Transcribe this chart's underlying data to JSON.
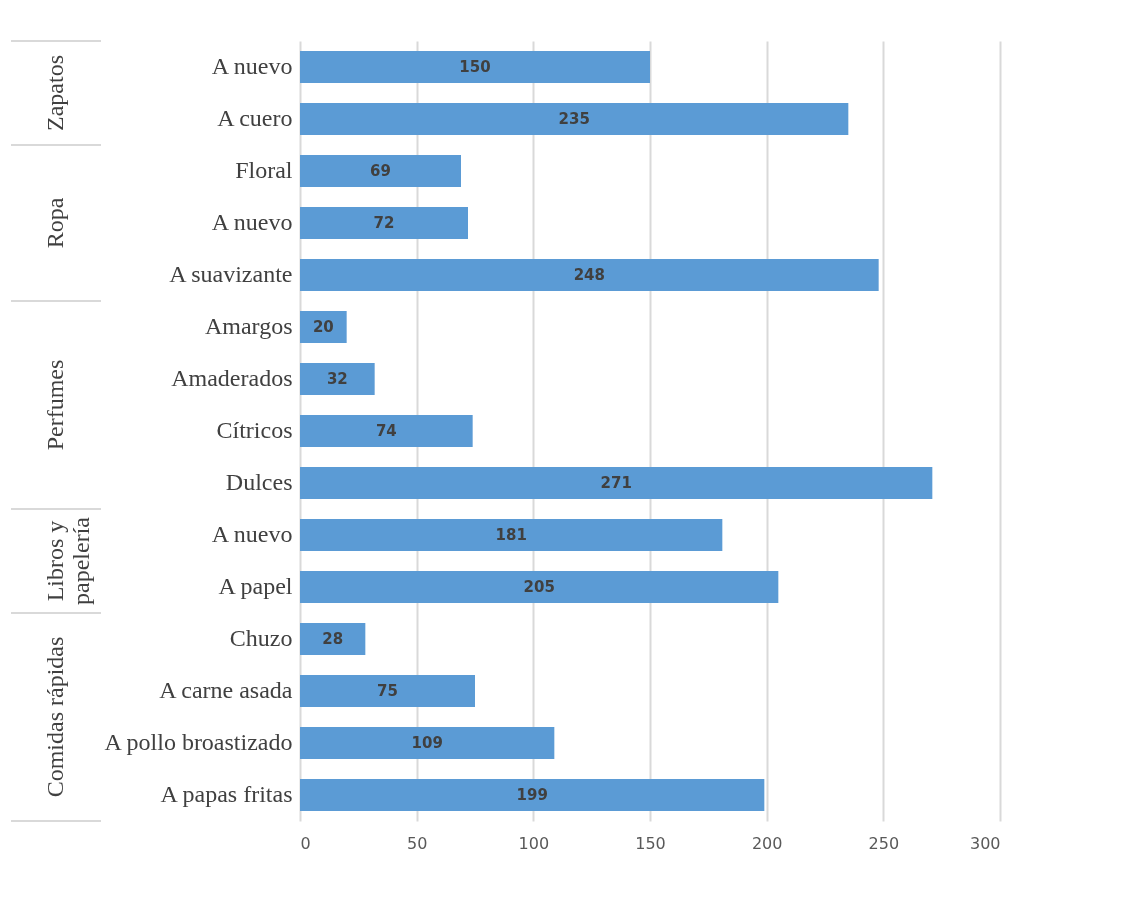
{
  "chart_data": {
    "type": "bar",
    "orientation": "horizontal",
    "categories": [
      "A nuevo",
      "A cuero",
      "Floral",
      "A nuevo",
      "A suavizante",
      "Amargos",
      "Amaderados",
      "Cítricos",
      "Dulces",
      "A nuevo",
      "A papel",
      "Chuzo",
      "A carne asada",
      "A pollo broastizado",
      "A papas fritas"
    ],
    "values": [
      150,
      235,
      69,
      72,
      248,
      20,
      32,
      74,
      271,
      181,
      205,
      28,
      75,
      109,
      199
    ],
    "color": "#5b9bd5",
    "xlim": [
      0,
      300
    ],
    "xticks": [
      0,
      50,
      100,
      150,
      200,
      250,
      300
    ],
    "grid": "x",
    "data_labels": true,
    "annotations": [
      "Zapatos",
      "Ropa",
      "Perfumes",
      "Libros y papelería",
      "Comidas rápidas"
    ]
  }
}
